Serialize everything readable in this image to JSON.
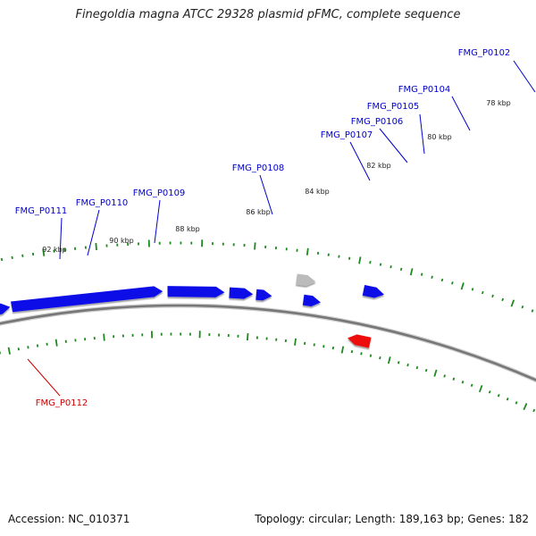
{
  "title": "Finegoldia magna ATCC 29328 plasmid pFMC, complete sequence",
  "footer": {
    "accession": "Accession: NC_010371",
    "topology": "Topology: circular; Length: 189,163 bp; Genes: 182"
  },
  "colors": {
    "forward_gene": "#1010e8",
    "reverse_gene": "#ee1111",
    "pseudo_gene": "#bbbbbb",
    "backbone": "#777777",
    "tick": "#1e8a1e",
    "forward_label": "#0000cc",
    "reverse_label": "#cc0000"
  },
  "ticks": [
    {
      "label": "92 kbp"
    },
    {
      "label": "90 kbp"
    },
    {
      "label": "88 kbp"
    },
    {
      "label": "86 kbp"
    },
    {
      "label": "84 kbp"
    },
    {
      "label": "82 kbp"
    },
    {
      "label": "80 kbp"
    },
    {
      "label": "78 kbp"
    }
  ],
  "gene_labels": [
    {
      "name": "FMG_P0111",
      "strand": "forward"
    },
    {
      "name": "FMG_P0110",
      "strand": "forward"
    },
    {
      "name": "FMG_P0109",
      "strand": "forward"
    },
    {
      "name": "FMG_P0108",
      "strand": "forward"
    },
    {
      "name": "FMG_P0107",
      "strand": "forward"
    },
    {
      "name": "FMG_P0106",
      "strand": "forward"
    },
    {
      "name": "FMG_P0105",
      "strand": "forward"
    },
    {
      "name": "FMG_P0104",
      "strand": "forward"
    },
    {
      "name": "FMG_P0102",
      "strand": "forward"
    },
    {
      "name": "FMG_P0112",
      "strand": "reverse"
    }
  ]
}
